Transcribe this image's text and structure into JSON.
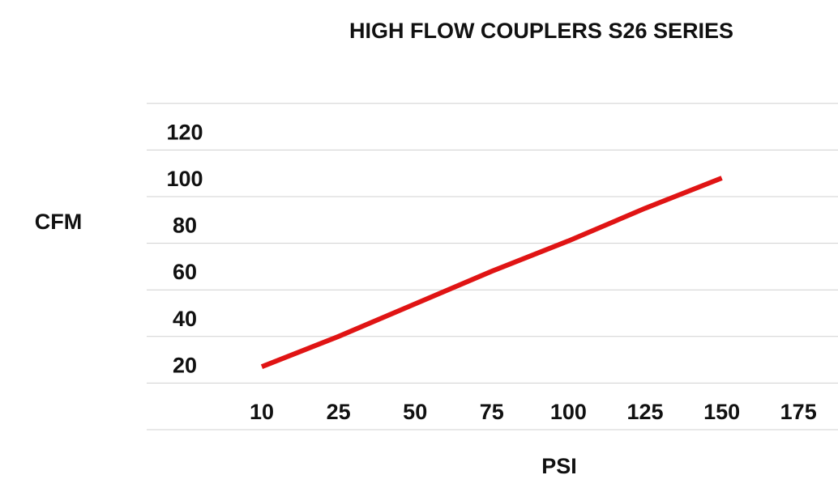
{
  "chart_data": {
    "type": "line",
    "title": "HIGH FLOW COUPLERS S26 SERIES",
    "xlabel": "PSI",
    "ylabel": "CFM",
    "categories": [
      "10",
      "25",
      "50",
      "75",
      "100",
      "125",
      "150",
      "175"
    ],
    "yticks": [
      20,
      40,
      60,
      80,
      100,
      120
    ],
    "ylim": [
      0,
      140
    ],
    "grid": true,
    "series": [
      {
        "values": [
          27,
          40,
          54,
          68,
          81,
          95,
          108,
          null
        ],
        "color": "#e01414"
      }
    ]
  }
}
